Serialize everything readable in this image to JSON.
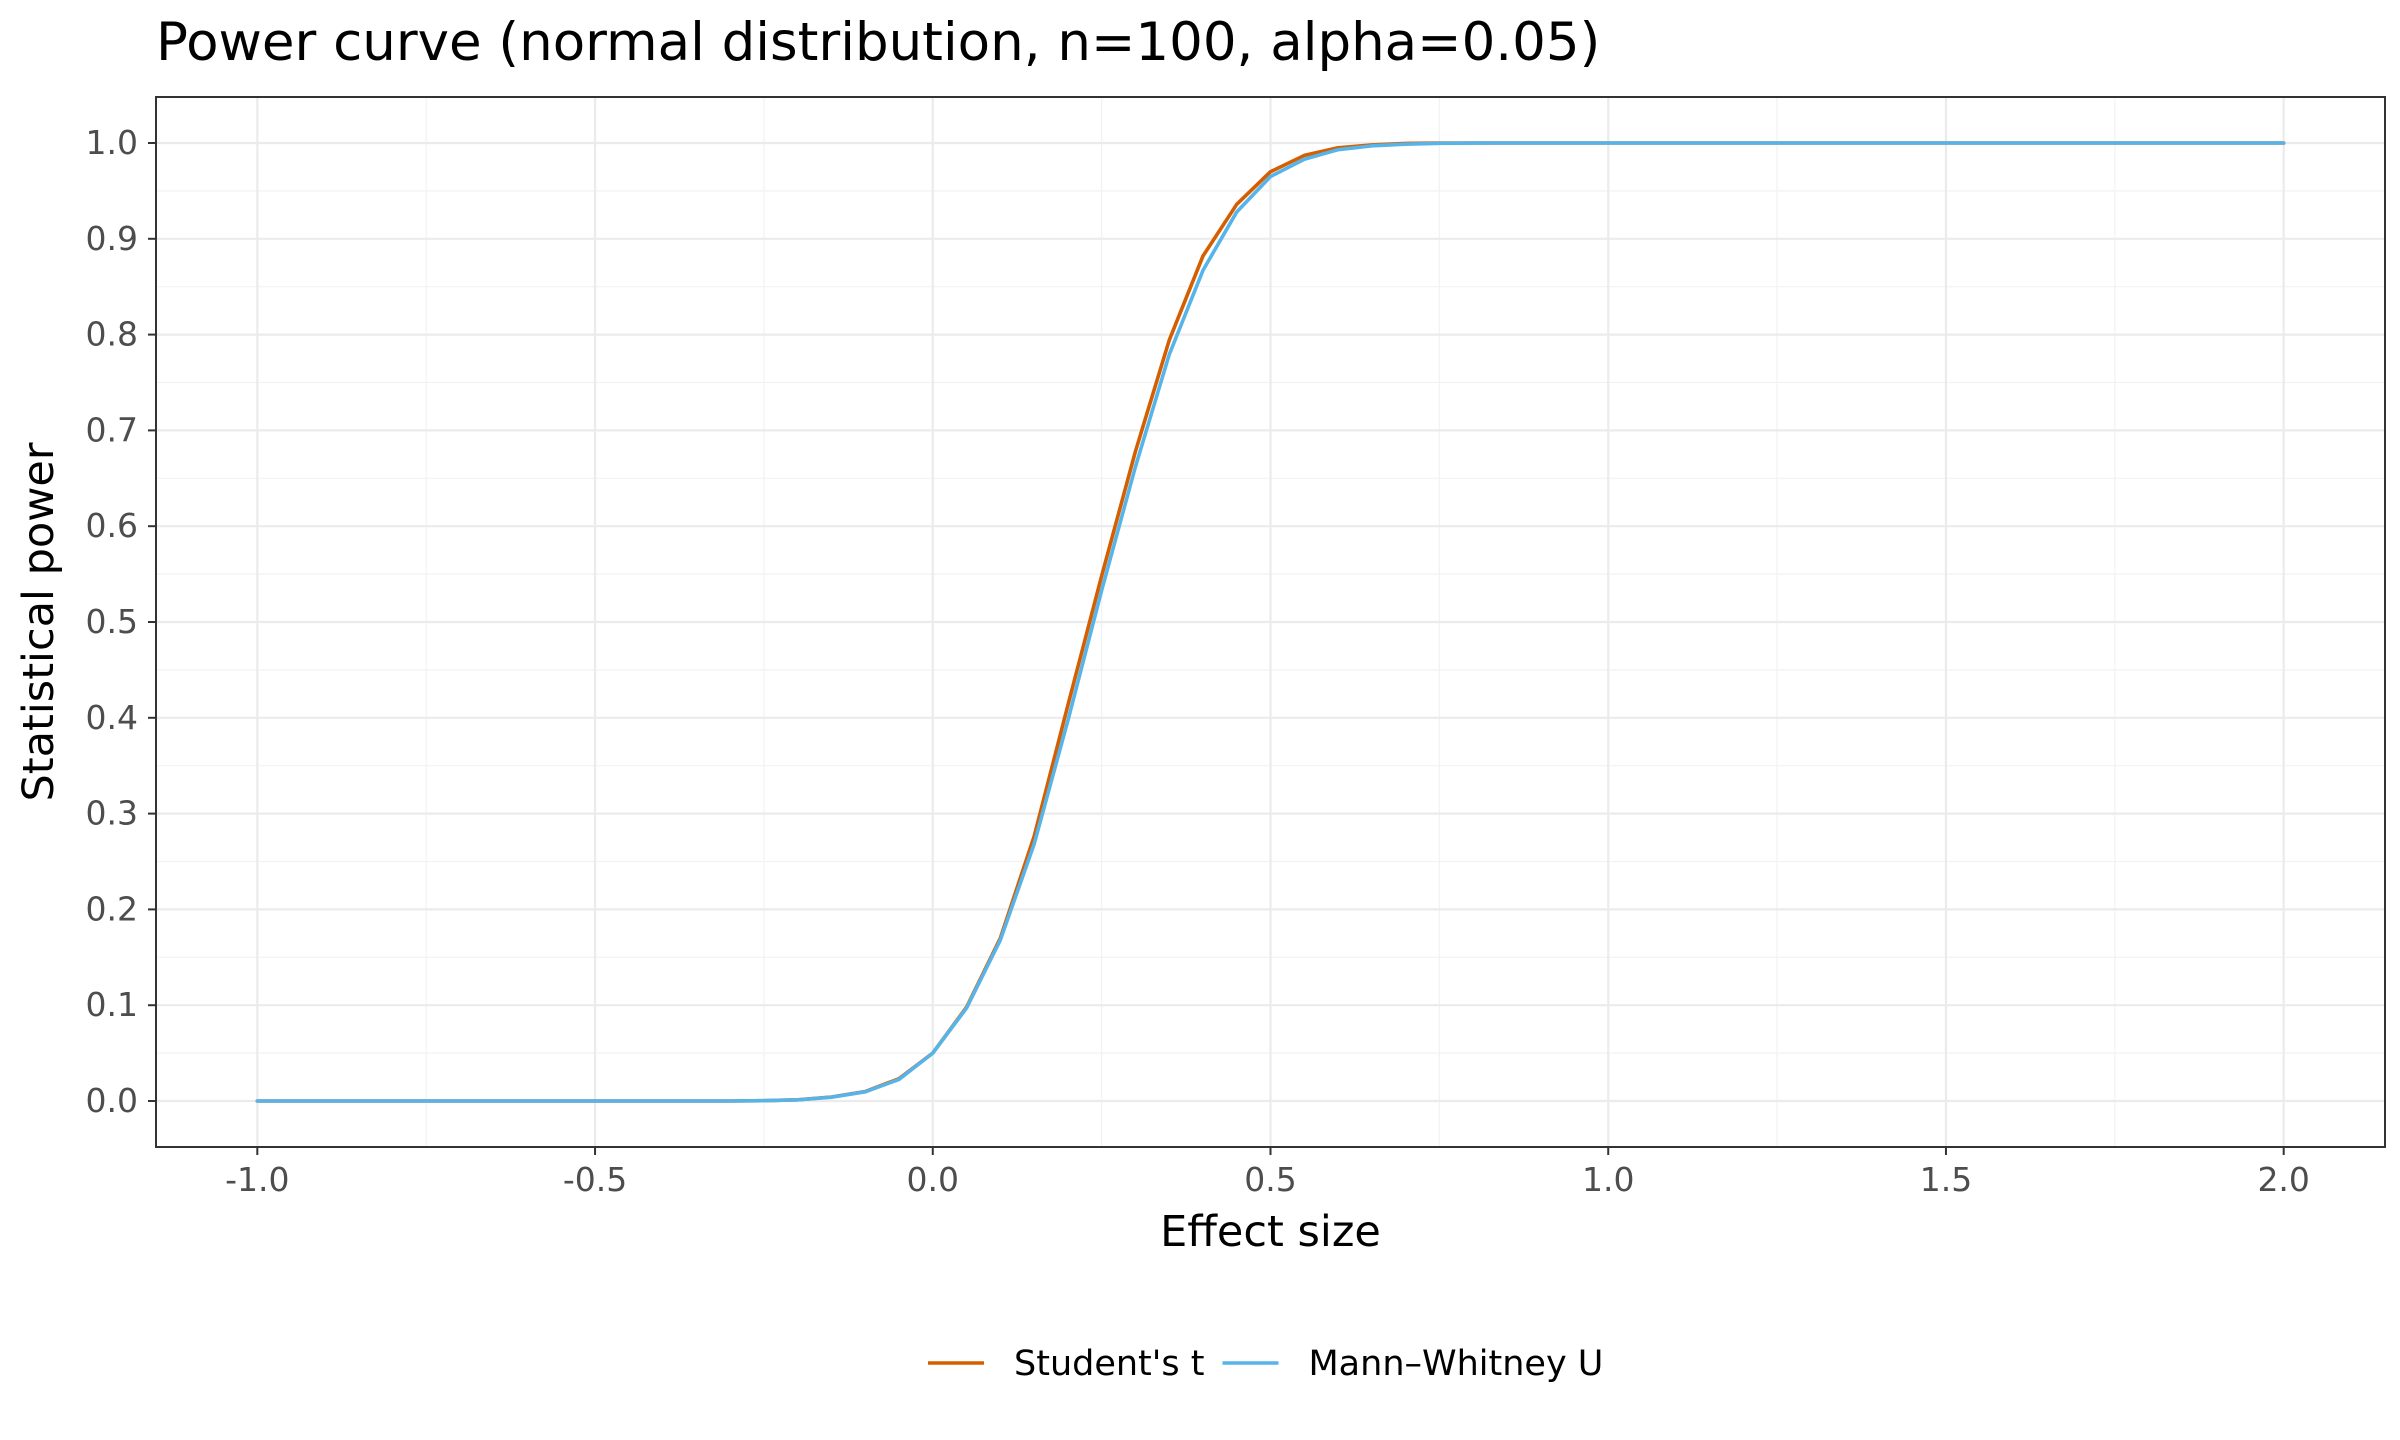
{
  "chart_data": {
    "type": "line",
    "title": "Power curve (normal distribution, n=100, alpha=0.05)",
    "xlabel": "Effect size",
    "ylabel": "Statistical power",
    "xlim": [
      -1.15,
      2.15
    ],
    "ylim": [
      -0.048,
      1.048
    ],
    "x_ticks": [
      -1.0,
      -0.5,
      0.0,
      0.5,
      1.0,
      1.5,
      2.0
    ],
    "x_tick_labels": [
      "-1.0",
      "-0.5",
      "0.0",
      "0.5",
      "1.0",
      "1.5",
      "2.0"
    ],
    "x_minor_ticks": [
      -0.75,
      -0.25,
      0.25,
      0.75,
      1.25,
      1.75
    ],
    "y_ticks": [
      0.0,
      0.1,
      0.2,
      0.3,
      0.4,
      0.5,
      0.6,
      0.7,
      0.8,
      0.9,
      1.0
    ],
    "y_tick_labels": [
      "0.0",
      "0.1",
      "0.2",
      "0.3",
      "0.4",
      "0.5",
      "0.6",
      "0.7",
      "0.8",
      "0.9",
      "1.0"
    ],
    "y_minor_ticks": [
      0.05,
      0.15,
      0.25,
      0.35,
      0.45,
      0.55,
      0.65,
      0.75,
      0.85,
      0.95
    ],
    "grid": true,
    "legend_position": "bottom",
    "x": [
      -1.0,
      -0.95,
      -0.9,
      -0.85,
      -0.8,
      -0.75,
      -0.7,
      -0.65,
      -0.6,
      -0.55,
      -0.5,
      -0.45,
      -0.4,
      -0.35,
      -0.3,
      -0.25,
      -0.2,
      -0.15,
      -0.1,
      -0.05,
      0.0,
      0.05,
      0.1,
      0.15,
      0.2,
      0.25,
      0.3,
      0.35,
      0.4,
      0.45,
      0.5,
      0.55,
      0.6,
      0.65,
      0.7,
      0.75,
      0.8,
      0.85,
      0.9,
      0.95,
      1.0,
      1.05,
      1.1,
      1.15,
      1.2,
      1.25,
      1.3,
      1.35,
      1.4,
      1.45,
      1.5,
      1.55,
      1.6,
      1.65,
      1.7,
      1.75,
      1.8,
      1.85,
      1.9,
      1.95,
      2.0
    ],
    "series": [
      {
        "name": "Student's t",
        "color": "#D55E00",
        "values": [
          0.0,
          0.0,
          0.0,
          0.0,
          0.0,
          0.0,
          0.0,
          0.0,
          0.0,
          0.0,
          0.0,
          0.0,
          0.0,
          0.0,
          0.0,
          0.0003,
          0.0013,
          0.0042,
          0.0099,
          0.0233,
          0.05,
          0.098,
          0.17,
          0.276,
          0.413,
          0.548,
          0.678,
          0.794,
          0.882,
          0.936,
          0.97,
          0.987,
          0.995,
          0.998,
          0.9995,
          0.9999,
          1.0,
          1.0,
          1.0,
          1.0,
          1.0,
          1.0,
          1.0,
          1.0,
          1.0,
          1.0,
          1.0,
          1.0,
          1.0,
          1.0,
          1.0,
          1.0,
          1.0,
          1.0,
          1.0,
          1.0,
          1.0,
          1.0,
          1.0,
          1.0,
          1.0
        ]
      },
      {
        "name": "Mann–Whitney U",
        "color": "#56B4E9",
        "values": [
          0.0,
          0.0,
          0.0,
          0.0,
          0.0,
          0.0,
          0.0,
          0.0,
          0.0,
          0.0,
          0.0,
          0.0,
          0.0,
          0.0,
          0.0,
          0.0003,
          0.0012,
          0.004,
          0.0096,
          0.0225,
          0.05,
          0.097,
          0.168,
          0.268,
          0.397,
          0.533,
          0.662,
          0.779,
          0.867,
          0.928,
          0.965,
          0.983,
          0.993,
          0.997,
          0.9988,
          0.9996,
          0.9999,
          1.0,
          1.0,
          1.0,
          1.0,
          1.0,
          1.0,
          1.0,
          1.0,
          1.0,
          1.0,
          1.0,
          1.0,
          1.0,
          1.0,
          1.0,
          1.0,
          1.0,
          1.0,
          1.0,
          1.0,
          1.0,
          1.0,
          1.0,
          1.0
        ]
      }
    ]
  }
}
